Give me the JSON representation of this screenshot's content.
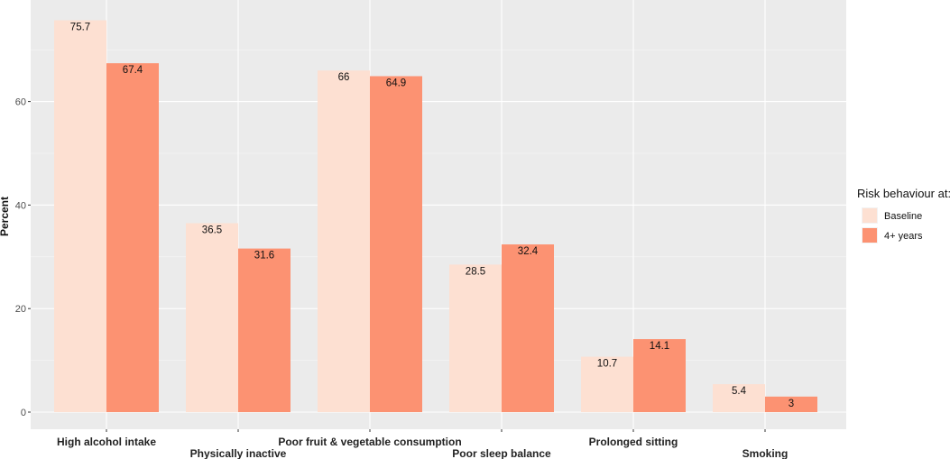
{
  "chart_data": {
    "type": "bar",
    "categories": [
      "High alcohol intake",
      "Physically inactive",
      "Poor fruit & vegetable consumption",
      "Poor sleep balance",
      "Prolonged sitting",
      "Smoking"
    ],
    "series": [
      {
        "name": "Baseline",
        "values": [
          75.7,
          36.5,
          66,
          28.5,
          10.7,
          5.4
        ],
        "color": "#fde0d2"
      },
      {
        "name": "4+ years",
        "values": [
          67.4,
          31.6,
          64.9,
          32.4,
          14.1,
          3
        ],
        "color": "#fc9272"
      }
    ],
    "data_labels": [
      [
        "75.7",
        "36.5",
        "66",
        "28.5",
        "10.7",
        "5.4"
      ],
      [
        "67.4",
        "31.6",
        "64.9",
        "32.4",
        "14.1",
        "3"
      ]
    ],
    "title": "",
    "xlabel": "",
    "ylabel": "Percent",
    "ylim": [
      0,
      79
    ],
    "yticks": [
      0,
      20,
      40,
      60
    ],
    "grid": true,
    "legend": {
      "title": "Risk behaviour at:",
      "placement": "right"
    },
    "colors": {
      "panel": "#ebebeb",
      "grid": "#ffffff"
    }
  }
}
